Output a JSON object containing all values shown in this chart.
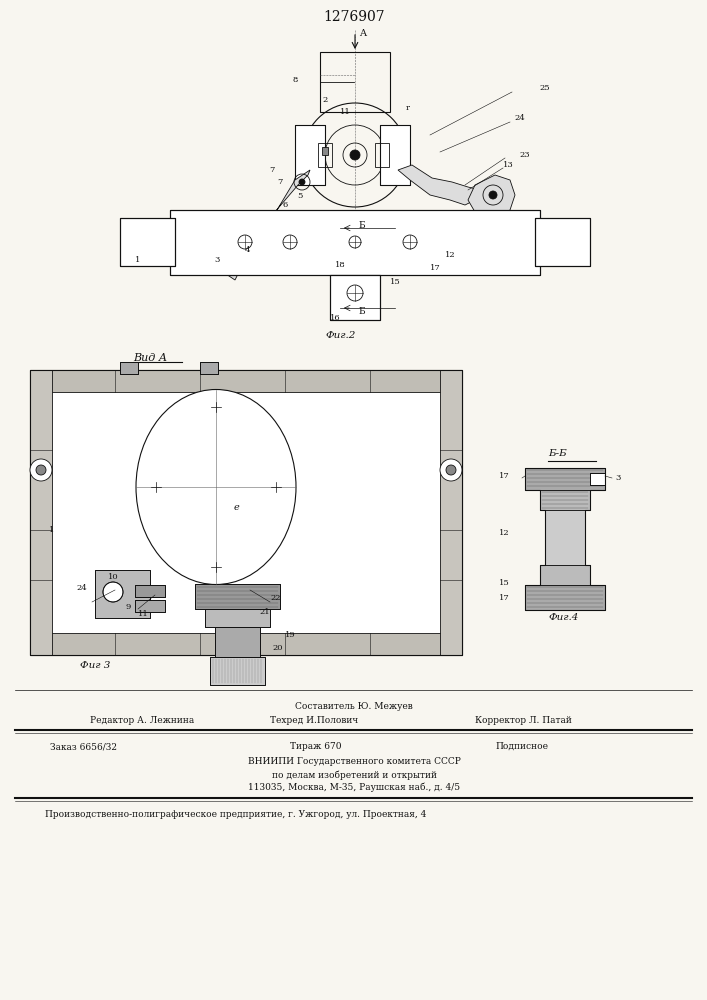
{
  "patent_number": "1276907",
  "bg_color": "#f8f6f0",
  "fig2_label": "Фиг.2",
  "fig3_label": "Фиг 3",
  "fig4_label": "Фиг.4",
  "vida_label": "Вид А",
  "bb_label": "Б-Б",
  "footer_text_1": "Составитель Ю. Межуев",
  "footer_text_2": "Редактор А. Лежнина",
  "footer_text_3": "Техред И.Полович",
  "footer_text_4": "Корректор Л. Патай",
  "footer_text_5": "Заказ 6656/32",
  "footer_text_6": "Тираж 670",
  "footer_text_7": "Подписное",
  "footer_text_8": "ВНИИПИ Государственного комитета СССР",
  "footer_text_9": "по делам изобретений и открытий",
  "footer_text_10": "113035, Москва, М-35, Раушская наб., д. 4/5",
  "footer_text_11": "Производственно-полиграфическое предприятие, г. Ужгород, ул. Проектная, 4"
}
